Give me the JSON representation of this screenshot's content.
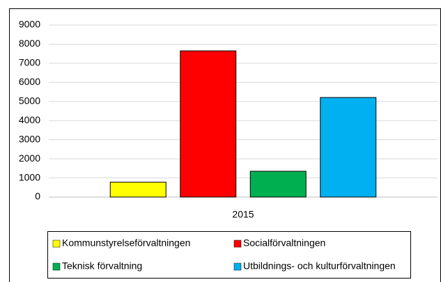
{
  "chart_data": {
    "type": "bar",
    "categories": [
      "2015"
    ],
    "series": [
      {
        "name": "Kommunstyrelseförvaltningen",
        "color": "#ffff00",
        "values": [
          780
        ]
      },
      {
        "name": "Socialförvaltningen",
        "color": "#ff0000",
        "values": [
          7650
        ]
      },
      {
        "name": "Teknisk förvaltning",
        "color": "#00b050",
        "values": [
          1350
        ]
      },
      {
        "name": "Utbildnings- och kulturförvaltningen",
        "color": "#00b0f0",
        "values": [
          5210
        ]
      }
    ],
    "ylim": [
      0,
      9000
    ],
    "yticks": [
      0,
      1000,
      2000,
      3000,
      4000,
      5000,
      6000,
      7000,
      8000,
      9000
    ],
    "grid": true,
    "legend": "bottom"
  }
}
